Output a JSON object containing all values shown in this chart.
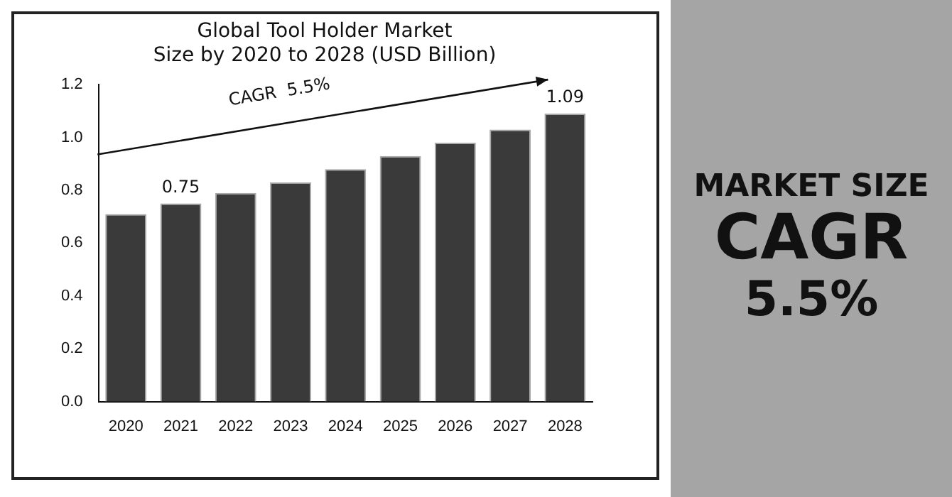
{
  "chart_data": {
    "type": "bar",
    "title": "Global Tool Holder Market\nSize by 2020 to 2028 (USD Billion)",
    "categories": [
      "2020",
      "2021",
      "2022",
      "2023",
      "2024",
      "2025",
      "2026",
      "2027",
      "2028"
    ],
    "values": [
      0.71,
      0.75,
      0.79,
      0.83,
      0.88,
      0.93,
      0.98,
      1.03,
      1.09
    ],
    "value_labels": [
      null,
      "0.75",
      null,
      null,
      null,
      null,
      null,
      null,
      "1.09"
    ],
    "color": "#3a3a3a",
    "ylim": [
      0,
      1.2
    ],
    "yticks": [
      {
        "value": 0,
        "label": "0.0"
      },
      {
        "value": 0.2,
        "label": "0.2"
      },
      {
        "value": 0.4,
        "label": "0.4"
      },
      {
        "value": 0.6,
        "label": "0.6"
      },
      {
        "value": 0.8,
        "label": "0.8"
      },
      {
        "value": 1,
        "label": "1.0"
      },
      {
        "value": 1.2,
        "label": "1.2"
      }
    ],
    "grid": false,
    "annotations": [
      "CAGR  5.5%",
      "MARKET SIZE",
      "CAGR",
      "5.5%"
    ]
  }
}
